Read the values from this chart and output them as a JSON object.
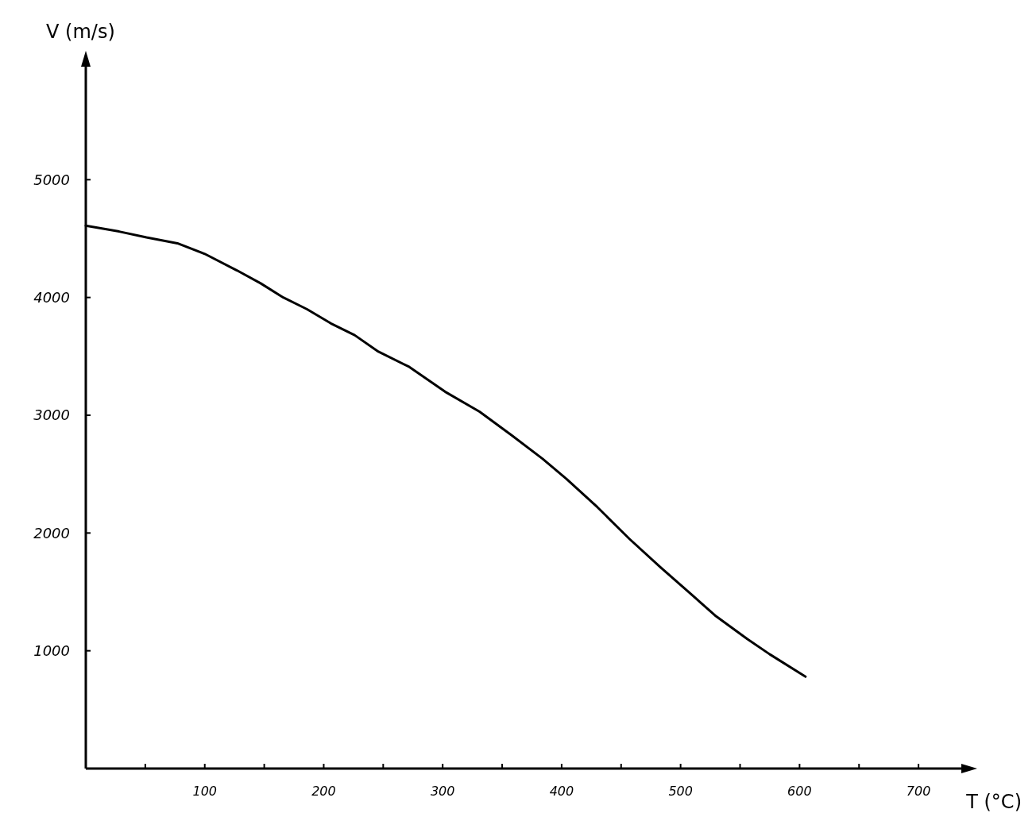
{
  "chart_data": {
    "type": "line",
    "xlabel": "T (°C)",
    "ylabel": "V (m/s)",
    "x": [
      0,
      28,
      51,
      77,
      100,
      127,
      147,
      166,
      186,
      206,
      226,
      246,
      272,
      302,
      331,
      358,
      384,
      404,
      430,
      457,
      483,
      510,
      529,
      556,
      575,
      605
    ],
    "series": [
      {
        "color": "#000000",
        "values": [
          4610,
          4560,
          4510,
          4460,
          4370,
          4230,
          4120,
          4000,
          3900,
          3780,
          3680,
          3540,
          3410,
          3200,
          3030,
          2830,
          2630,
          2460,
          2220,
          1950,
          1710,
          1470,
          1300,
          1100,
          970,
          780
        ]
      }
    ],
    "xlim": [
      0,
      740
    ],
    "ylim": [
      0,
      6000
    ],
    "xticks": [
      {
        "value": 50,
        "label": null
      },
      100,
      {
        "value": 150,
        "label": null
      },
      200,
      {
        "value": 250,
        "label": null
      },
      300,
      {
        "value": 350,
        "label": null
      },
      400,
      {
        "value": 450,
        "label": null
      },
      500,
      {
        "value": 550,
        "label": null
      },
      600,
      {
        "value": 650,
        "label": null
      },
      700
    ],
    "yticks": [
      1000,
      2000,
      3000,
      4000,
      5000
    ],
    "grid": false,
    "marker": "none",
    "line_style": "solid"
  }
}
